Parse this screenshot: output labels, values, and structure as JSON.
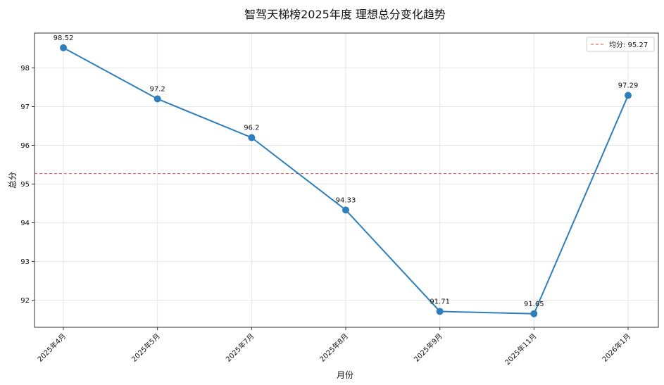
{
  "chart_data": {
    "type": "line",
    "title": "智驾天梯榜2025年度 理想总分变化趋势",
    "xlabel": "月份",
    "ylabel": "总分",
    "categories": [
      "2025年4月",
      "2025年5月",
      "2025年7月",
      "2025年8月",
      "2025年9月",
      "2025年11月",
      "2026年1月"
    ],
    "series": [
      {
        "values": [
          98.52,
          97.2,
          96.2,
          94.33,
          91.71,
          91.65,
          97.29
        ],
        "color": "#2e7ebb"
      }
    ],
    "data_labels": [
      "98.52",
      "97.2",
      "96.2",
      "94.33",
      "91.71",
      "91.65",
      "97.29"
    ],
    "yticks": [
      92,
      93,
      94,
      95,
      96,
      97,
      98
    ],
    "ylim": [
      91.3,
      98.9
    ],
    "reference_line": {
      "label": "均分: 95.27",
      "value": 95.27,
      "color": "#d9534f",
      "style": "dashed"
    },
    "legend_position": "top-right",
    "grid": true
  }
}
